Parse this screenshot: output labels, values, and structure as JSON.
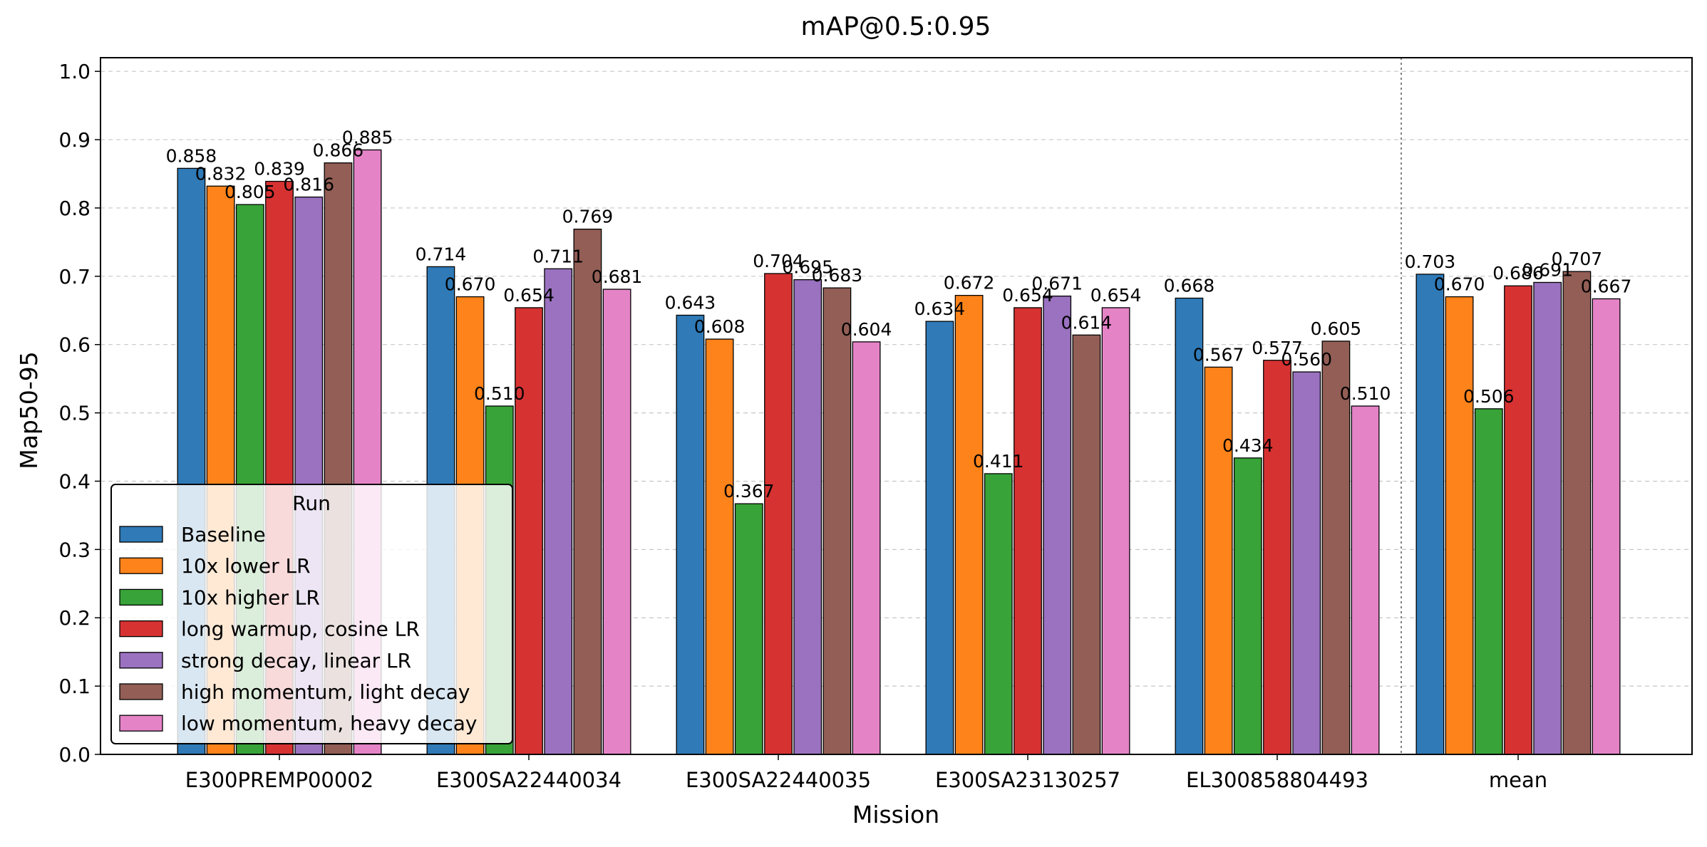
{
  "chart_data": {
    "type": "bar",
    "title": "mAP@0.5:0.95",
    "xlabel": "Mission",
    "ylabel": "Map50-95",
    "ylim": [
      0,
      1.02
    ],
    "yticks": [
      "0.0",
      "0.1",
      "0.2",
      "0.3",
      "0.4",
      "0.5",
      "0.6",
      "0.7",
      "0.8",
      "0.9",
      "1.0"
    ],
    "categories": [
      "E300PREMP00002",
      "E300SA22440034",
      "E300SA22440035",
      "E300SA23130257",
      "EL300858804493",
      "mean"
    ],
    "grid": "y-dashed",
    "separator_before_category": "mean",
    "legend": {
      "title": "Run",
      "position": "lower-left"
    },
    "series": [
      {
        "name": "Baseline",
        "color": "#2f7ab7",
        "values": [
          0.858,
          0.714,
          0.643,
          0.634,
          0.668,
          0.703
        ],
        "labels": [
          "0.858",
          "0.714",
          "0.643",
          "0.634",
          "0.668",
          "0.703"
        ]
      },
      {
        "name": "10x lower LR",
        "color": "#fd831a",
        "values": [
          0.832,
          0.67,
          0.608,
          0.672,
          0.567,
          0.67
        ],
        "labels": [
          "0.832",
          "0.670",
          "0.608",
          "0.672",
          "0.567",
          "0.670"
        ]
      },
      {
        "name": "10x higher LR",
        "color": "#38a338",
        "values": [
          0.805,
          0.51,
          0.367,
          0.411,
          0.434,
          0.506
        ],
        "labels": [
          "0.805",
          "0.510",
          "0.367",
          "0.411",
          "0.434",
          "0.506"
        ]
      },
      {
        "name": "long warmup, cosine LR",
        "color": "#d73232",
        "values": [
          0.839,
          0.654,
          0.704,
          0.654,
          0.577,
          0.686
        ],
        "labels": [
          "0.839",
          "0.654",
          "0.704",
          "0.654",
          "0.577",
          "0.686"
        ]
      },
      {
        "name": "strong decay, linear LR",
        "color": "#9a72c0",
        "values": [
          0.816,
          0.711,
          0.695,
          0.671,
          0.56,
          0.691
        ],
        "labels": [
          "0.816",
          "0.711",
          "0.695",
          "0.671",
          "0.560",
          "0.691"
        ]
      },
      {
        "name": "high momentum, light decay",
        "color": "#925e55",
        "values": [
          0.866,
          0.769,
          0.683,
          0.614,
          0.605,
          0.707
        ],
        "labels": [
          "0.866",
          "0.769",
          "0.683",
          "0.614",
          "0.605",
          "0.707"
        ]
      },
      {
        "name": "low momentum, heavy decay",
        "color": "#e583c7",
        "values": [
          0.885,
          0.681,
          0.604,
          0.654,
          0.51,
          0.667
        ],
        "labels": [
          "0.885",
          "0.681",
          "0.604",
          "0.654",
          "0.510",
          "0.667"
        ]
      }
    ]
  }
}
